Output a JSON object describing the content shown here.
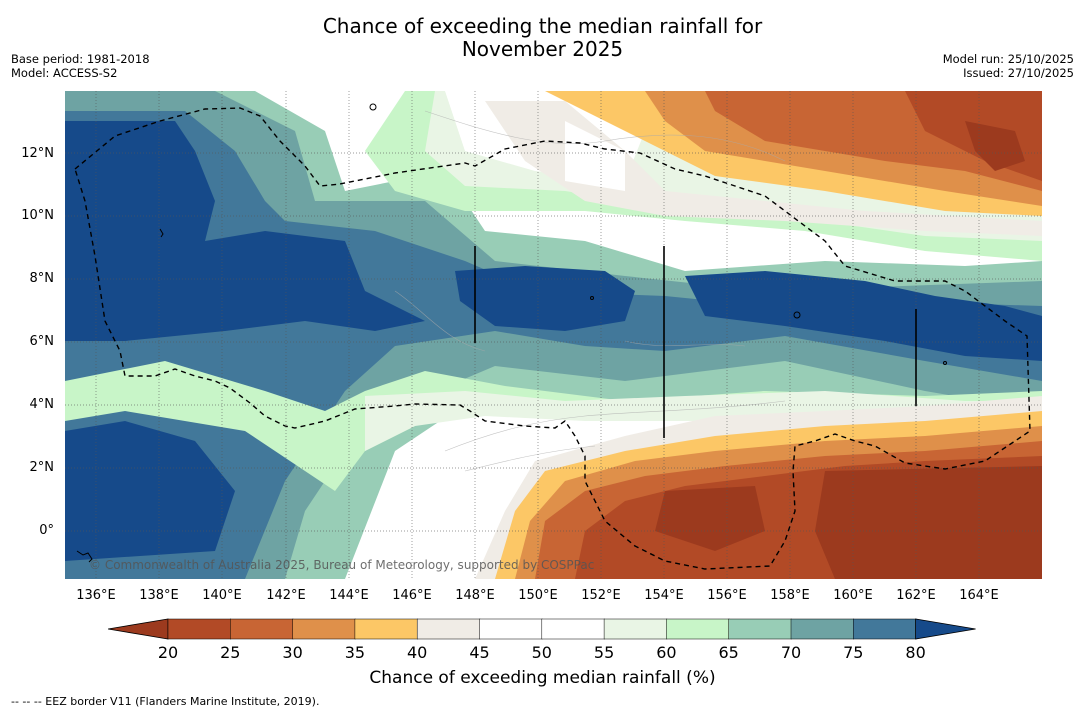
{
  "title_line1": "Chance of exceeding the median rainfall for",
  "title_line2": "November 2025",
  "meta_left": {
    "base_period": "Base period: 1981-2018",
    "model": "Model: ACCESS-S2"
  },
  "meta_right": {
    "model_run": "Model run: 25/10/2025",
    "issued": "Issued: 27/10/2025"
  },
  "copyright": "© Commonwealth of Australia 2025, Bureau of Meteorology, supported by COSPPac",
  "footnote": "--  --  -- EEZ border V11 (Flanders Marine Institute, 2019).",
  "colorbar": {
    "title": "Chance of exceeding median rainfall (%)",
    "ticks": [
      "20",
      "25",
      "30",
      "35",
      "40",
      "45",
      "50",
      "55",
      "60",
      "65",
      "70",
      "75",
      "80"
    ],
    "colors": [
      "#9c3a1e",
      "#b24a26",
      "#c86534",
      "#df904a",
      "#fcc766",
      "#f0ece6",
      "#ffffff",
      "#ffffff",
      "#e9f5e5",
      "#c8f5c8",
      "#98cdb6",
      "#6ea3a3",
      "#42789a",
      "#164a8a"
    ]
  },
  "chart_data": {
    "type": "heatmap",
    "title": "Chance of exceeding the median rainfall for November 2025",
    "variable": "Chance of exceeding median rainfall (%)",
    "lon_ticks": [
      "136°E",
      "138°E",
      "140°E",
      "142°E",
      "144°E",
      "146°E",
      "148°E",
      "150°E",
      "152°E",
      "154°E",
      "156°E",
      "158°E",
      "160°E",
      "162°E",
      "164°E"
    ],
    "lat_ticks": [
      "12°N",
      "10°N",
      "8°N",
      "6°N",
      "4°N",
      "2°N",
      "0°"
    ],
    "lon_range": [
      135,
      166
    ],
    "lat_range": [
      -1.5,
      14
    ],
    "summary_regions": [
      {
        "region": "north-east (150–166°E, 9–14°N)",
        "chance_pct": "20-35"
      },
      {
        "region": "west / central band (135–150°E, 5–12°N)",
        "chance_pct": "75-80"
      },
      {
        "region": "equatorial band (150–166°E, 5–8°N)",
        "chance_pct": "75-80"
      },
      {
        "region": "south-east (150–166°E, -1.5–3°N)",
        "chance_pct": "20-30"
      },
      {
        "region": "south-west (135–145°E, -1.5–3°N)",
        "chance_pct": "75-80"
      }
    ]
  }
}
